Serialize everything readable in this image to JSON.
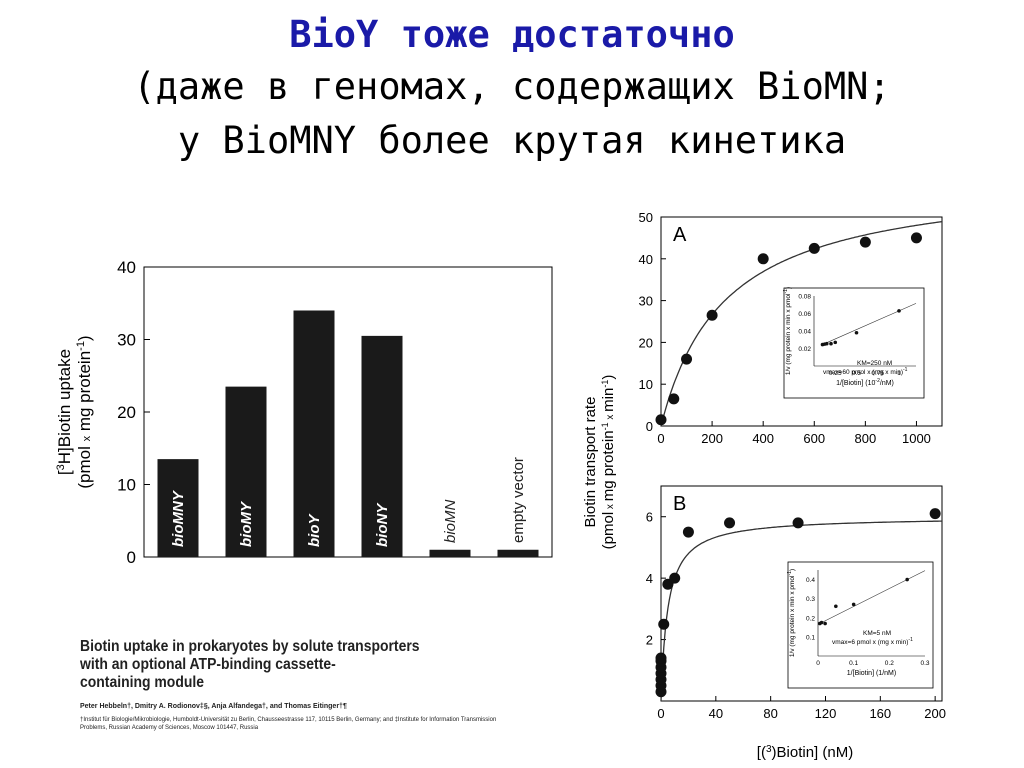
{
  "slide": {
    "title_line1": "BioY тоже достаточно",
    "title_line2": "(даже в геномах, содержащих BioMN;",
    "title_line3": "у BioMNY более крутая кинетика"
  },
  "paper": {
    "title_line1": "Biotin uptake in prokaryotes by solute transporters",
    "title_line2": "with an optional ATP-binding cassette-",
    "title_line3": "containing module",
    "authors": "Peter Hebbeln†, Dmitry A. Rodionov‡§, Anja Alfandega†, and Thomas Eitinger†¶",
    "affiliation": "†Institut für Biologie/Mikrobiologie, Humboldt-Universität zu Berlin, Chausseestrasse 117, 10115 Berlin, Germany; and ‡Institute for Information Transmission Problems, Russian Academy of Sciences, Moscow 101447, Russia"
  },
  "chart_data": [
    {
      "type": "bar",
      "categories": [
        "bioMNY",
        "bioMY",
        "bioY",
        "bioNY",
        "bioMN",
        "empty vector"
      ],
      "values": [
        13.5,
        23.5,
        34,
        30.5,
        1,
        1
      ],
      "ylabel_line1": "[3H]Biotin uptake",
      "ylabel_line2": "(pmol x mg protein-1)",
      "ylim": [
        0,
        40
      ],
      "yticks": [
        0,
        10,
        20,
        30,
        40
      ],
      "bar_color": "#1a1a1a"
    },
    {
      "type": "scatter",
      "panel_label": "A",
      "x": [
        0,
        50,
        100,
        200,
        400,
        600,
        800,
        1000
      ],
      "y": [
        1.5,
        6.5,
        16,
        26.5,
        40,
        42.5,
        44,
        45
      ],
      "fit": {
        "vmax": 60,
        "km": 250
      },
      "xlim": [
        0,
        1100
      ],
      "ylim": [
        0,
        50
      ],
      "xticks": [
        0,
        200,
        400,
        600,
        800,
        1000
      ],
      "yticks": [
        0,
        10,
        20,
        30,
        40,
        50
      ],
      "inset": {
        "x": [
          0.1,
          0.125,
          0.15,
          0.2,
          0.25,
          0.5,
          1.0
        ],
        "y": [
          0.0245,
          0.025,
          0.0255,
          0.0255,
          0.027,
          0.038,
          0.063
        ],
        "xlim": [
          0,
          1.2
        ],
        "ylim": [
          0,
          0.08
        ],
        "xticks": [
          0.25,
          0.5,
          0.75,
          1
        ],
        "yticks": [
          0.02,
          0.04,
          0.06,
          0.08
        ],
        "xlabel": "1/[Biotin] (10",
        "xlabel_sup": "-2",
        "xlabel_end": "/nM)",
        "ylabel": "1/v (mg protein x min x pmol",
        "ylabel_sup": "-1",
        "ylabel_end": ")",
        "km_label": "KM=250 nM",
        "vmax_label": "vmax=60 pmol x (mg x min)",
        "vmax_sup": "-1"
      }
    },
    {
      "type": "scatter",
      "panel_label": "B",
      "x": [
        0,
        0,
        0,
        0,
        0,
        0,
        0,
        2,
        5,
        10,
        20,
        50,
        100,
        200
      ],
      "y": [
        0.3,
        0.5,
        0.7,
        0.9,
        1.1,
        1.3,
        1.4,
        2.5,
        3.8,
        4.0,
        5.5,
        5.8,
        5.8,
        6.1
      ],
      "fit": {
        "vmax": 6,
        "km": 5
      },
      "xlim": [
        0,
        205
      ],
      "ylim": [
        0,
        7
      ],
      "xticks": [
        0,
        40,
        80,
        120,
        160,
        200
      ],
      "yticks": [
        2,
        4,
        6
      ],
      "inset": {
        "x": [
          0.005,
          0.01,
          0.02,
          0.05,
          0.1,
          0.25
        ],
        "y": [
          0.17,
          0.175,
          0.17,
          0.26,
          0.27,
          0.4
        ],
        "xlim": [
          0,
          0.3
        ],
        "ylim": [
          0,
          0.45
        ],
        "xticks": [
          0,
          0.1,
          0.2,
          0.3
        ],
        "yticks": [
          0.1,
          0.2,
          0.3,
          0.4
        ],
        "xlabel": "1/[Biotin] (1/nM)",
        "xlabel_sup": "",
        "xlabel_end": "",
        "ylabel": "1/v (mg protein x min x pmol",
        "ylabel_sup": "-1",
        "ylabel_end": ")",
        "km_label": "KM=5 nM",
        "vmax_label": "vmax=6 pmol x (mg x min)",
        "vmax_sup": "-1"
      }
    }
  ],
  "shared_axes": {
    "ylabel_line1": "Biotin transport rate",
    "ylabel_line2": "(pmol x mg protein-1 x min-1)",
    "xlabel": "[(3H)Biotin] (nM)"
  }
}
